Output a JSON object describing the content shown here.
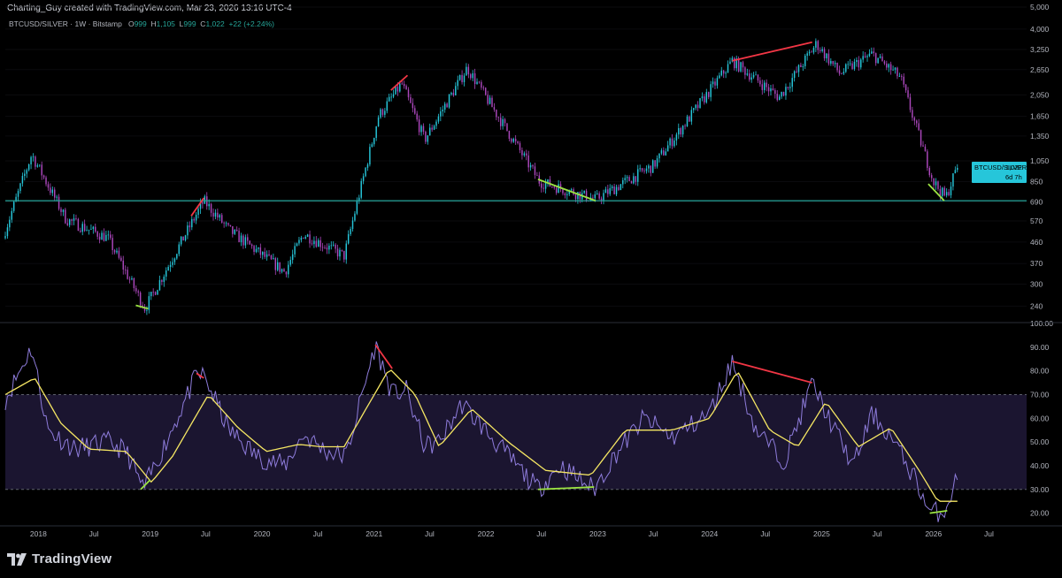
{
  "header": {
    "credit": "Charting_Guy created with TradingView.com, Mar 23, 2026 13:16 UTC-4"
  },
  "symbol": {
    "name": "BTCUSD/SILVER · 1W · Bitstamp",
    "open_key": "O",
    "open": "999",
    "high_key": "H",
    "high": "1,105",
    "low_key": "L",
    "low": "999",
    "close_key": "C",
    "close": "1,022",
    "change": "+22 (+2.24%)"
  },
  "price_label": {
    "symbol": "BTCUSD/SILVER",
    "value": "1,022",
    "countdown": "6d 7h"
  },
  "brand": {
    "name": "TradingView"
  },
  "colors": {
    "up": "#26c6da",
    "down": "#ab47bc",
    "support": "#26a69a",
    "rsi": "#8e7cdb",
    "rsi_ma": "#f5e663",
    "bear_div": "#f23645",
    "bull_div": "#9be342",
    "band": "#1b1530"
  },
  "chart_data": [
    {
      "type": "candlestick",
      "title": "BTCUSD/SILVER",
      "scale": "log",
      "ylim": [
        205,
        5000
      ],
      "y_ticks": [
        "240",
        "300",
        "370",
        "460",
        "570",
        "690",
        "850",
        "1,050",
        "1,350",
        "1,650",
        "2,050",
        "2,650",
        "3,250",
        "4,000",
        "5,000"
      ],
      "x_ticks": [
        "2018",
        "Jul",
        "2019",
        "Jul",
        "2020",
        "Jul",
        "2021",
        "Jul",
        "2022",
        "Jul",
        "2023",
        "Jul",
        "2024",
        "Jul",
        "2025",
        "Jul",
        "2026",
        "Jul"
      ],
      "key_points": [
        {
          "date": "2017-09-15",
          "value": 520
        },
        {
          "date": "2017-12-10",
          "value": 1120
        },
        {
          "date": "2018-04-01",
          "value": 580
        },
        {
          "date": "2018-08-15",
          "value": 480
        },
        {
          "date": "2018-12-15",
          "value": 235
        },
        {
          "date": "2019-06-25",
          "value": 700
        },
        {
          "date": "2019-09-15",
          "value": 520
        },
        {
          "date": "2020-03-15",
          "value": 340
        },
        {
          "date": "2020-05-15",
          "value": 500
        },
        {
          "date": "2020-09-25",
          "value": 400
        },
        {
          "date": "2021-01-15",
          "value": 1650
        },
        {
          "date": "2021-04-01",
          "value": 2300
        },
        {
          "date": "2021-06-15",
          "value": 1300
        },
        {
          "date": "2021-11-01",
          "value": 2700
        },
        {
          "date": "2022-06-25",
          "value": 850
        },
        {
          "date": "2022-12-25",
          "value": 710
        },
        {
          "date": "2023-07-01",
          "value": 1000
        },
        {
          "date": "2024-03-15",
          "value": 2900
        },
        {
          "date": "2024-08-15",
          "value": 2000
        },
        {
          "date": "2024-12-15",
          "value": 3450
        },
        {
          "date": "2025-03-01",
          "value": 2550
        },
        {
          "date": "2025-06-15",
          "value": 3100
        },
        {
          "date": "2025-09-15",
          "value": 2450
        },
        {
          "date": "2026-01-01",
          "value": 850
        },
        {
          "date": "2026-02-10",
          "value": 720
        },
        {
          "date": "2026-03-23",
          "value": 1022
        }
      ],
      "support_line": 700,
      "divergence_lines": [
        {
          "kind": "bearish",
          "points": [
            {
              "date": "2019-05-15",
              "value": 600
            },
            {
              "date": "2019-06-25",
              "value": 720
            }
          ]
        },
        {
          "kind": "bearish",
          "points": [
            {
              "date": "2021-02-25",
              "value": 2150
            },
            {
              "date": "2021-04-20",
              "value": 2500
            }
          ]
        },
        {
          "kind": "bearish",
          "points": [
            {
              "date": "2024-03-15",
              "value": 2900
            },
            {
              "date": "2024-12-01",
              "value": 3500
            }
          ]
        },
        {
          "kind": "bullish",
          "points": [
            {
              "date": "2018-11-15",
              "value": 242
            },
            {
              "date": "2018-12-25",
              "value": 234
            }
          ]
        },
        {
          "kind": "bullish",
          "points": [
            {
              "date": "2022-06-20",
              "value": 870
            },
            {
              "date": "2022-12-25",
              "value": 700
            }
          ]
        },
        {
          "kind": "bullish",
          "points": [
            {
              "date": "2025-12-15",
              "value": 830
            },
            {
              "date": "2026-02-05",
              "value": 700
            }
          ]
        }
      ]
    },
    {
      "type": "line",
      "title": "RSI",
      "ylim": [
        15,
        100
      ],
      "y_ticks": [
        "20.00",
        "30.00",
        "40.00",
        "50.00",
        "60.00",
        "70.00",
        "80.00",
        "90.00",
        "100.00"
      ],
      "band": [
        30,
        70
      ],
      "series": [
        {
          "key": "rsi",
          "points": [
            {
              "date": "2017-09-15",
              "value": 68
            },
            {
              "date": "2017-12-10",
              "value": 90
            },
            {
              "date": "2018-02-01",
              "value": 55
            },
            {
              "date": "2018-05-01",
              "value": 47
            },
            {
              "date": "2018-08-15",
              "value": 50
            },
            {
              "date": "2018-10-15",
              "value": 46
            },
            {
              "date": "2018-12-10",
              "value": 30
            },
            {
              "date": "2019-02-15",
              "value": 48
            },
            {
              "date": "2019-06-01",
              "value": 78
            },
            {
              "date": "2019-06-25",
              "value": 78
            },
            {
              "date": "2019-09-15",
              "value": 55
            },
            {
              "date": "2019-12-15",
              "value": 44
            },
            {
              "date": "2020-03-15",
              "value": 40
            },
            {
              "date": "2020-05-15",
              "value": 53
            },
            {
              "date": "2020-08-01",
              "value": 46
            },
            {
              "date": "2020-10-01",
              "value": 44
            },
            {
              "date": "2021-01-05",
              "value": 91
            },
            {
              "date": "2021-03-01",
              "value": 70
            },
            {
              "date": "2021-04-15",
              "value": 72
            },
            {
              "date": "2021-06-15",
              "value": 48
            },
            {
              "date": "2021-08-01",
              "value": 50
            },
            {
              "date": "2021-10-15",
              "value": 66
            },
            {
              "date": "2022-02-01",
              "value": 50
            },
            {
              "date": "2022-06-20",
              "value": 30
            },
            {
              "date": "2022-09-01",
              "value": 40
            },
            {
              "date": "2022-12-20",
              "value": 30
            },
            {
              "date": "2023-03-01",
              "value": 45
            },
            {
              "date": "2023-06-01",
              "value": 60
            },
            {
              "date": "2023-09-01",
              "value": 52
            },
            {
              "date": "2024-01-01",
              "value": 62
            },
            {
              "date": "2024-03-15",
              "value": 84
            },
            {
              "date": "2024-06-01",
              "value": 55
            },
            {
              "date": "2024-09-01",
              "value": 42
            },
            {
              "date": "2024-12-01",
              "value": 75
            },
            {
              "date": "2025-02-01",
              "value": 58
            },
            {
              "date": "2025-04-15",
              "value": 40
            },
            {
              "date": "2025-06-15",
              "value": 62
            },
            {
              "date": "2025-08-15",
              "value": 52
            },
            {
              "date": "2025-11-01",
              "value": 35
            },
            {
              "date": "2025-12-20",
              "value": 20
            },
            {
              "date": "2026-02-05",
              "value": 21
            },
            {
              "date": "2026-03-23",
              "value": 36
            }
          ]
        },
        {
          "key": "rsi_ma",
          "points": [
            {
              "date": "2017-09-15",
              "value": 70
            },
            {
              "date": "2017-12-20",
              "value": 77
            },
            {
              "date": "2018-03-15",
              "value": 58
            },
            {
              "date": "2018-06-15",
              "value": 47
            },
            {
              "date": "2018-10-15",
              "value": 46
            },
            {
              "date": "2019-01-05",
              "value": 33
            },
            {
              "date": "2019-03-15",
              "value": 44
            },
            {
              "date": "2019-07-10",
              "value": 70
            },
            {
              "date": "2019-10-15",
              "value": 56
            },
            {
              "date": "2020-01-15",
              "value": 46
            },
            {
              "date": "2020-05-01",
              "value": 49
            },
            {
              "date": "2020-07-15",
              "value": 48
            },
            {
              "date": "2020-09-25",
              "value": 48
            },
            {
              "date": "2021-02-20",
              "value": 81
            },
            {
              "date": "2021-05-15",
              "value": 70
            },
            {
              "date": "2021-08-01",
              "value": 48
            },
            {
              "date": "2021-11-15",
              "value": 64
            },
            {
              "date": "2022-03-15",
              "value": 50
            },
            {
              "date": "2022-07-15",
              "value": 38
            },
            {
              "date": "2022-12-10",
              "value": 36
            },
            {
              "date": "2023-04-01",
              "value": 55
            },
            {
              "date": "2023-09-01",
              "value": 55
            },
            {
              "date": "2024-01-01",
              "value": 60
            },
            {
              "date": "2024-04-01",
              "value": 80
            },
            {
              "date": "2024-07-15",
              "value": 55
            },
            {
              "date": "2024-10-15",
              "value": 48
            },
            {
              "date": "2025-01-15",
              "value": 67
            },
            {
              "date": "2025-05-01",
              "value": 48
            },
            {
              "date": "2025-08-15",
              "value": 56
            },
            {
              "date": "2025-11-15",
              "value": 38
            },
            {
              "date": "2026-01-15",
              "value": 25
            },
            {
              "date": "2026-03-23",
              "value": 25
            }
          ]
        }
      ],
      "divergence_lines": [
        {
          "kind": "bearish",
          "points": [
            {
              "date": "2019-06-01",
              "value": 79
            },
            {
              "date": "2019-06-25",
              "value": 77
            }
          ]
        },
        {
          "kind": "bearish",
          "points": [
            {
              "date": "2021-01-05",
              "value": 91
            },
            {
              "date": "2021-03-01",
              "value": 81
            }
          ]
        },
        {
          "kind": "bearish",
          "points": [
            {
              "date": "2024-03-15",
              "value": 84
            },
            {
              "date": "2024-12-01",
              "value": 75
            }
          ]
        },
        {
          "kind": "bullish",
          "points": [
            {
              "date": "2018-12-01",
              "value": 30
            },
            {
              "date": "2019-01-01",
              "value": 34
            }
          ]
        },
        {
          "kind": "bullish",
          "points": [
            {
              "date": "2022-06-20",
              "value": 30
            },
            {
              "date": "2022-12-20",
              "value": 31
            }
          ]
        },
        {
          "kind": "bullish",
          "points": [
            {
              "date": "2025-12-20",
              "value": 20
            },
            {
              "date": "2026-02-15",
              "value": 21
            }
          ]
        }
      ]
    }
  ]
}
